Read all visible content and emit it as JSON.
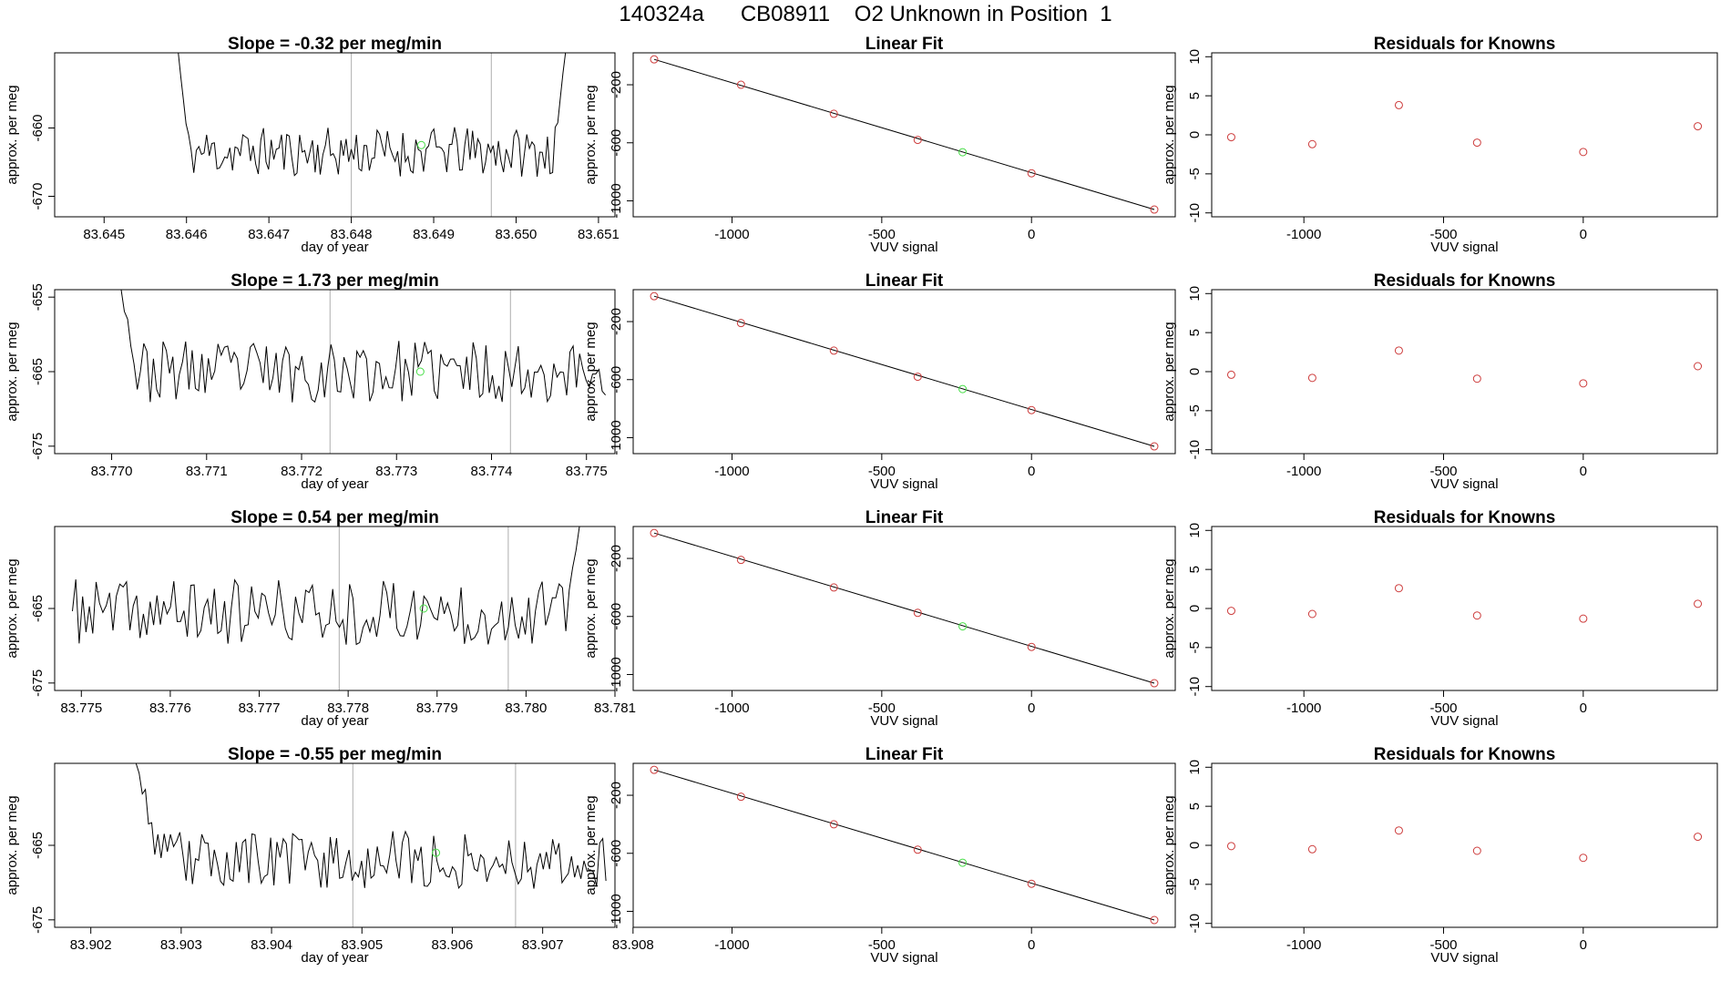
{
  "page_title": "140324a      CB08911    O2 Unknown in Position  1",
  "colors": {
    "trace": "#000000",
    "known_point": "#cd3c3c",
    "unknown_point": "#44dd44",
    "marker_line": "#bbbbbb",
    "frame": "#000000"
  },
  "chart_data": [
    {
      "type": "line",
      "panel": "trace",
      "title": "Slope =  -0.32  per meg/min",
      "xlabel": "day of year",
      "ylabel": "approx. per meg",
      "xlim": [
        83.6444,
        83.6512
      ],
      "ylim": [
        -673,
        -649
      ],
      "xticks": [
        "83.645",
        "83.646",
        "83.647",
        "83.648",
        "83.649",
        "83.650",
        "83.651"
      ],
      "xtick_values": [
        83.645,
        83.646,
        83.647,
        83.648,
        83.649,
        83.65,
        83.651
      ],
      "yticks": [
        "-660",
        "-670"
      ],
      "ytick_values": [
        -660,
        -670
      ],
      "vlines": [
        83.648,
        83.6497
      ],
      "unknown_point": {
        "x": 83.64885,
        "y": -662.5
      },
      "trace_x_range": [
        83.6459,
        83.6506
      ],
      "trace_start": -649,
      "trace_end": -649,
      "trace_ramp_start": 4,
      "trace_ramp_end": 4,
      "trace_mean": -663.5,
      "trace_amp": 2.8,
      "trace_seed": 11
    },
    {
      "type": "scatter",
      "panel": "linear_fit",
      "title": "Linear Fit",
      "xlabel": "VUV signal",
      "ylabel": "approx. per meg",
      "xlim": [
        -1330,
        480
      ],
      "ylim": [
        -1110,
        20
      ],
      "xticks": [
        "-1000",
        "-500",
        "0"
      ],
      "xtick_values": [
        -1000,
        -500,
        0
      ],
      "yticks": [
        "-200",
        "-600",
        "-1000"
      ],
      "ytick_values": [
        -200,
        -600,
        -1000
      ],
      "line": {
        "x": [
          -1260,
          410
        ],
        "y": [
          -25,
          -1060
        ]
      },
      "known_points": {
        "x": [
          -1260,
          -970,
          -660,
          -380,
          0,
          410
        ],
        "y": [
          -25,
          -200,
          -400,
          -580,
          -810,
          -1060
        ]
      },
      "unknown_point": {
        "x": -230,
        "y": -665
      }
    },
    {
      "type": "scatter",
      "panel": "residuals",
      "title": "Residuals for Knowns",
      "xlabel": "VUV signal",
      "ylabel": "approx. per meg",
      "xlim": [
        -1330,
        480
      ],
      "ylim": [
        -10.5,
        10.5
      ],
      "xticks": [
        "-1000",
        "-500",
        "0"
      ],
      "xtick_values": [
        -1000,
        -500,
        0
      ],
      "yticks": [
        "10",
        "5",
        "0",
        "-5",
        "-10"
      ],
      "ytick_values": [
        10,
        5,
        0,
        -5,
        -10
      ],
      "points": {
        "x": [
          -1260,
          -970,
          -660,
          -380,
          0,
          410
        ],
        "y": [
          -0.3,
          -1.2,
          3.8,
          -1.0,
          -2.2,
          1.1
        ]
      }
    },
    {
      "type": "line",
      "panel": "trace",
      "title": "Slope =  1.73  per meg/min",
      "xlabel": "day of year",
      "ylabel": "approx. per meg",
      "xlim": [
        83.7694,
        83.7753
      ],
      "ylim": [
        -676,
        -654
      ],
      "xticks": [
        "83.770",
        "83.771",
        "83.772",
        "83.773",
        "83.774",
        "83.775"
      ],
      "xtick_values": [
        83.77,
        83.771,
        83.772,
        83.773,
        83.774,
        83.775
      ],
      "yticks": [
        "-655",
        "-665",
        "-675"
      ],
      "ytick_values": [
        -655,
        -665,
        -675
      ],
      "vlines": [
        83.7723,
        83.7742
      ],
      "unknown_point": {
        "x": 83.77325,
        "y": -665
      },
      "trace_x_range": [
        83.7701,
        83.7752
      ],
      "trace_start": -654,
      "trace_end": -663,
      "trace_ramp_start": 5,
      "trace_ramp_end": 0,
      "trace_mean": -665,
      "trace_amp": 3.2,
      "trace_seed": 23
    },
    {
      "type": "scatter",
      "panel": "linear_fit",
      "title": "Linear Fit",
      "xlabel": "VUV signal",
      "ylabel": "approx. per meg",
      "xlim": [
        -1330,
        480
      ],
      "ylim": [
        -1110,
        20
      ],
      "xticks": [
        "-1000",
        "-500",
        "0"
      ],
      "xtick_values": [
        -1000,
        -500,
        0
      ],
      "yticks": [
        "-200",
        "-600",
        "-1000"
      ],
      "ytick_values": [
        -200,
        -600,
        -1000
      ],
      "line": {
        "x": [
          -1260,
          410
        ],
        "y": [
          -25,
          -1060
        ]
      },
      "known_points": {
        "x": [
          -1260,
          -970,
          -660,
          -380,
          0,
          410
        ],
        "y": [
          -25,
          -210,
          -400,
          -580,
          -810,
          -1060
        ]
      },
      "unknown_point": {
        "x": -230,
        "y": -665
      }
    },
    {
      "type": "scatter",
      "panel": "residuals",
      "title": "Residuals for Knowns",
      "xlabel": "VUV signal",
      "ylabel": "approx. per meg",
      "xlim": [
        -1330,
        480
      ],
      "ylim": [
        -10.5,
        10.5
      ],
      "xticks": [
        "-1000",
        "-500",
        "0"
      ],
      "xtick_values": [
        -1000,
        -500,
        0
      ],
      "yticks": [
        "10",
        "5",
        "0",
        "-5",
        "-10"
      ],
      "ytick_values": [
        10,
        5,
        0,
        -5,
        -10
      ],
      "points": {
        "x": [
          -1260,
          -970,
          -660,
          -380,
          0,
          410
        ],
        "y": [
          -0.4,
          -0.8,
          2.7,
          -0.9,
          -1.5,
          0.7
        ]
      }
    },
    {
      "type": "line",
      "panel": "trace",
      "title": "Slope =  0.54  per meg/min",
      "xlabel": "day of year",
      "ylabel": "approx. per meg",
      "xlim": [
        83.7747,
        83.781
      ],
      "ylim": [
        -676,
        -654
      ],
      "xticks": [
        "83.775",
        "83.776",
        "83.777",
        "83.778",
        "83.779",
        "83.780",
        "83.781"
      ],
      "xtick_values": [
        83.775,
        83.776,
        83.777,
        83.778,
        83.779,
        83.78,
        83.781
      ],
      "yticks": [
        "-665",
        "-675"
      ],
      "ytick_values": [
        -665,
        -675
      ],
      "vlines": [
        83.7779,
        83.7798
      ],
      "unknown_point": {
        "x": 83.77885,
        "y": -665
      },
      "trace_x_range": [
        83.7749,
        83.7806
      ],
      "trace_start": -660,
      "trace_end": -654,
      "trace_ramp_start": 0,
      "trace_ramp_end": 4,
      "trace_mean": -665.5,
      "trace_amp": 3.4,
      "trace_seed": 37
    },
    {
      "type": "scatter",
      "panel": "linear_fit",
      "title": "Linear Fit",
      "xlabel": "VUV signal",
      "ylabel": "approx. per meg",
      "xlim": [
        -1330,
        480
      ],
      "ylim": [
        -1110,
        20
      ],
      "xticks": [
        "-1000",
        "-500",
        "0"
      ],
      "xtick_values": [
        -1000,
        -500,
        0
      ],
      "yticks": [
        "-200",
        "-600",
        "-1000"
      ],
      "ytick_values": [
        -200,
        -600,
        -1000
      ],
      "line": {
        "x": [
          -1260,
          410
        ],
        "y": [
          -25,
          -1060
        ]
      },
      "known_points": {
        "x": [
          -1260,
          -970,
          -660,
          -380,
          0,
          410
        ],
        "y": [
          -25,
          -210,
          -400,
          -575,
          -810,
          -1060
        ]
      },
      "unknown_point": {
        "x": -230,
        "y": -668
      }
    },
    {
      "type": "scatter",
      "panel": "residuals",
      "title": "Residuals for Knowns",
      "xlabel": "VUV signal",
      "ylabel": "approx. per meg",
      "xlim": [
        -1330,
        480
      ],
      "ylim": [
        -10.5,
        10.5
      ],
      "xticks": [
        "-1000",
        "-500",
        "0"
      ],
      "xtick_values": [
        -1000,
        -500,
        0
      ],
      "yticks": [
        "10",
        "5",
        "0",
        "-5",
        "-10"
      ],
      "ytick_values": [
        10,
        5,
        0,
        -5,
        -10
      ],
      "points": {
        "x": [
          -1260,
          -970,
          -660,
          -380,
          0,
          410
        ],
        "y": [
          -0.3,
          -0.7,
          2.6,
          -0.9,
          -1.3,
          0.6
        ]
      }
    },
    {
      "type": "line",
      "panel": "trace",
      "title": "Slope =  -0.55  per meg/min",
      "xlabel": "day of year",
      "ylabel": "approx. per meg",
      "xlim": [
        83.9016,
        83.9078
      ],
      "ylim": [
        -676,
        -654
      ],
      "xticks": [
        "83.902",
        "83.903",
        "83.904",
        "83.905",
        "83.906",
        "83.907",
        "83.908"
      ],
      "xtick_values": [
        83.902,
        83.903,
        83.904,
        83.905,
        83.906,
        83.907,
        83.908
      ],
      "yticks": [
        "-665",
        "-675"
      ],
      "ytick_values": [
        -665,
        -675
      ],
      "vlines": [
        83.9049,
        83.9067
      ],
      "unknown_point": {
        "x": 83.90582,
        "y": -666
      },
      "trace_x_range": [
        83.9025,
        83.9077
      ],
      "trace_start": -654,
      "trace_end": -666,
      "trace_ramp_start": 8,
      "trace_ramp_end": 0,
      "trace_mean": -667,
      "trace_amp": 3.0,
      "trace_seed": 53
    },
    {
      "type": "scatter",
      "panel": "linear_fit",
      "title": "Linear Fit",
      "xlabel": "VUV signal",
      "ylabel": "approx. per meg",
      "xlim": [
        -1330,
        480
      ],
      "ylim": [
        -1110,
        20
      ],
      "xticks": [
        "-1000",
        "-500",
        "0"
      ],
      "xtick_values": [
        -1000,
        -500,
        0
      ],
      "yticks": [
        "-200",
        "-600",
        "-1000"
      ],
      "ytick_values": [
        -200,
        -600,
        -1000
      ],
      "line": {
        "x": [
          -1260,
          410
        ],
        "y": [
          -25,
          -1060
        ]
      },
      "known_points": {
        "x": [
          -1260,
          -970,
          -660,
          -380,
          0,
          410
        ],
        "y": [
          -25,
          -210,
          -400,
          -575,
          -810,
          -1060
        ]
      },
      "unknown_point": {
        "x": -230,
        "y": -665
      }
    },
    {
      "type": "scatter",
      "panel": "residuals",
      "title": "Residuals for Knowns",
      "xlabel": "VUV signal",
      "ylabel": "approx. per meg",
      "xlim": [
        -1330,
        480
      ],
      "ylim": [
        -10.5,
        10.5
      ],
      "xticks": [
        "-1000",
        "-500",
        "0"
      ],
      "xtick_values": [
        -1000,
        -500,
        0
      ],
      "yticks": [
        "10",
        "5",
        "0",
        "-5",
        "-10"
      ],
      "ytick_values": [
        10,
        5,
        0,
        -5,
        -10
      ],
      "points": {
        "x": [
          -1260,
          -970,
          -660,
          -380,
          0,
          410
        ],
        "y": [
          -0.1,
          -0.5,
          1.9,
          -0.7,
          -1.6,
          1.1
        ]
      }
    }
  ]
}
